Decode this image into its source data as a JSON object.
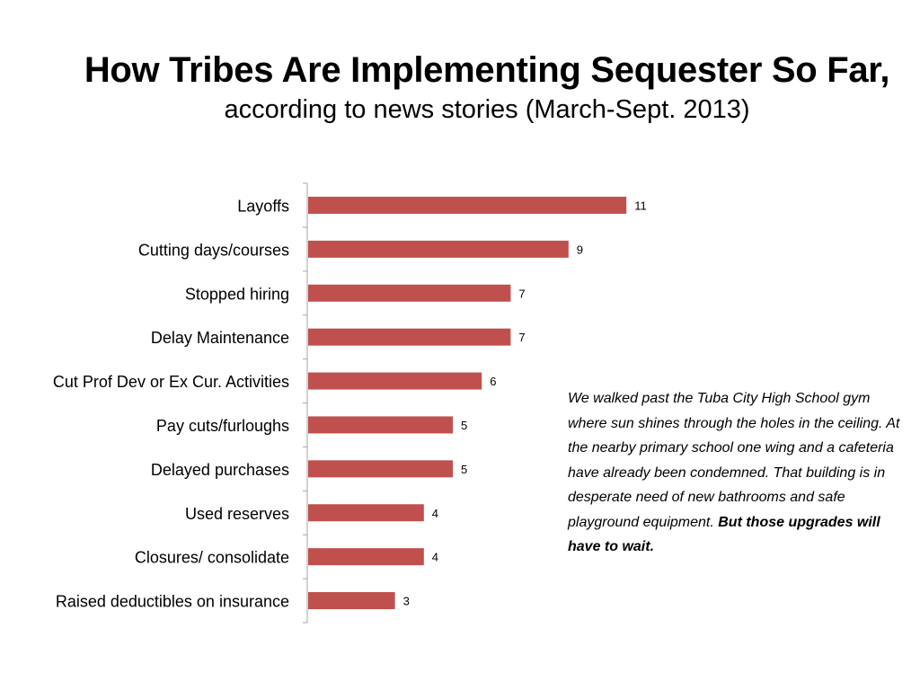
{
  "title": "How Tribes Are Implementing Sequester So Far,",
  "subtitle": "according to news stories (March-Sept. 2013)",
  "quote": {
    "text": "We walked past the Tuba City High School gym where sun shines through the holes in the ceiling. At the nearby primary school one wing and a cafeteria have already been condemned. That building is in desperate need of new bathrooms and safe playground equipment.",
    "emphasis": "But those upgrades will have to wait."
  },
  "chart_data": {
    "type": "bar",
    "orientation": "horizontal",
    "categories": [
      "Layoffs",
      "Cutting days/courses",
      "Stopped hiring",
      "Delay Maintenance",
      "Cut Prof Dev or Ex Cur. Activities",
      "Pay cuts/furloughs",
      "Delayed purchases",
      "Used reserves",
      "Closures/ consolidate",
      "Raised deductibles on insurance"
    ],
    "values": [
      11,
      9,
      7,
      7,
      6,
      5,
      5,
      4,
      4,
      3
    ],
    "data_labels": true,
    "bar_color": "#c0504d",
    "xlim": [
      0,
      12
    ],
    "grid": false,
    "legend": "none"
  }
}
